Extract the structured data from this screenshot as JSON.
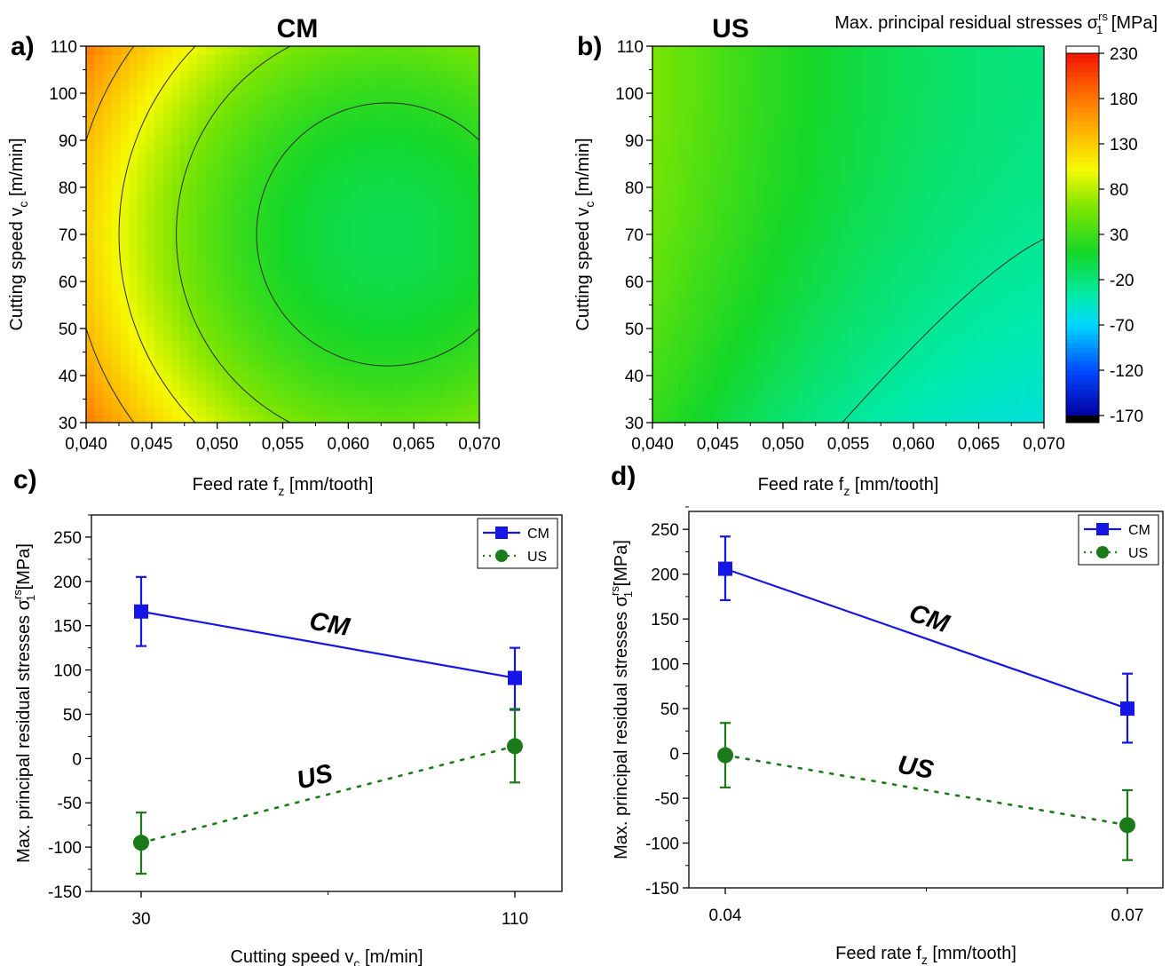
{
  "chart_data": [
    {
      "id": "a",
      "type": "heatmap",
      "panel_label": "a)",
      "title": "CM",
      "xlabel": "Feed rate f",
      "xlabel_sub": "z",
      "xlabel_unit": " [mm/tooth]",
      "ylabel": "Cutting speed v",
      "ylabel_sub": "c",
      "ylabel_unit": " [m/min]",
      "xlim": [
        0.04,
        0.07
      ],
      "ylim": [
        30,
        110
      ],
      "xticks": [
        "0,040",
        "0,045",
        "0,050",
        "0,055",
        "0,060",
        "0,065",
        "0,070"
      ],
      "yticks": [
        "30",
        "40",
        "50",
        "60",
        "70",
        "80",
        "90",
        "100",
        "110"
      ],
      "z_range": [
        -50,
        225
      ]
    },
    {
      "id": "b",
      "type": "heatmap",
      "panel_label": "b)",
      "title": "US",
      "xlabel": "Feed rate f",
      "xlabel_sub": "z",
      "xlabel_unit": " [mm/tooth]",
      "ylabel": "Cutting speed v",
      "ylabel_sub": "c",
      "ylabel_unit": " [m/min]",
      "xlim": [
        0.04,
        0.07
      ],
      "ylim": [
        30,
        110
      ],
      "xticks": [
        "0,040",
        "0,045",
        "0,050",
        "0,055",
        "0,060",
        "0,065",
        "0,070"
      ],
      "yticks": [
        "30",
        "40",
        "50",
        "60",
        "70",
        "80",
        "90",
        "100",
        "110"
      ],
      "z_range": [
        -170,
        40
      ],
      "colorbar": {
        "title": "Max. principal residual stresses σ",
        "title_sub": "1",
        "title_sup": "rs",
        "title_unit": " [MPa]",
        "ticks": [
          "230",
          "180",
          "130",
          "80",
          "30",
          "-20",
          "-70",
          "-120",
          "-170"
        ],
        "range": [
          -170,
          230
        ]
      }
    },
    {
      "id": "c",
      "type": "line",
      "panel_label": "c)",
      "xlabel": "Cutting speed v",
      "xlabel_sub": "c",
      "xlabel_unit": " [m/min]",
      "ylabel": "Max. principal residual stresses σ",
      "ylabel_sub": "1",
      "ylabel_sup": "rs",
      "ylabel_unit": " [MPa]",
      "x_categories": [
        "30",
        "110"
      ],
      "ylim": [
        -150,
        275
      ],
      "yticks": [
        "-150",
        "-100",
        "-50",
        "0",
        "50",
        "100",
        "150",
        "200",
        "250"
      ],
      "series": [
        {
          "name": "CM",
          "values": [
            166,
            91
          ],
          "err_low": [
            127,
            55
          ],
          "err_high": [
            205,
            125
          ]
        },
        {
          "name": "US",
          "values": [
            -95,
            14
          ],
          "err_low": [
            -130,
            -27
          ],
          "err_high": [
            -61,
            56
          ]
        }
      ],
      "annotations": [
        "CM",
        "US"
      ]
    },
    {
      "id": "d",
      "type": "line",
      "panel_label": "d)",
      "xlabel": "Feed rate f",
      "xlabel_sub": "z",
      "xlabel_unit": " [mm/tooth]",
      "ylabel": "Max. principal residual stresses σ",
      "ylabel_sub": "1",
      "ylabel_sup": "rs",
      "ylabel_unit": " [MPa]",
      "x_categories": [
        "0.04",
        "0.07"
      ],
      "ylim": [
        -150,
        270
      ],
      "yticks": [
        "-150",
        "-100",
        "-50",
        "0",
        "50",
        "100",
        "150",
        "200",
        "250"
      ],
      "series": [
        {
          "name": "CM",
          "values": [
            206,
            50
          ],
          "err_low": [
            171,
            12
          ],
          "err_high": [
            242,
            89
          ]
        },
        {
          "name": "US",
          "values": [
            -2,
            -80
          ],
          "err_low": [
            -38,
            -119
          ],
          "err_high": [
            34,
            -41
          ]
        }
      ],
      "annotations": [
        "CM",
        "US"
      ]
    }
  ],
  "colors": {
    "cm_line": "#1515e6",
    "us_line": "#1a7a1a",
    "contour": "#2a2a2a"
  }
}
